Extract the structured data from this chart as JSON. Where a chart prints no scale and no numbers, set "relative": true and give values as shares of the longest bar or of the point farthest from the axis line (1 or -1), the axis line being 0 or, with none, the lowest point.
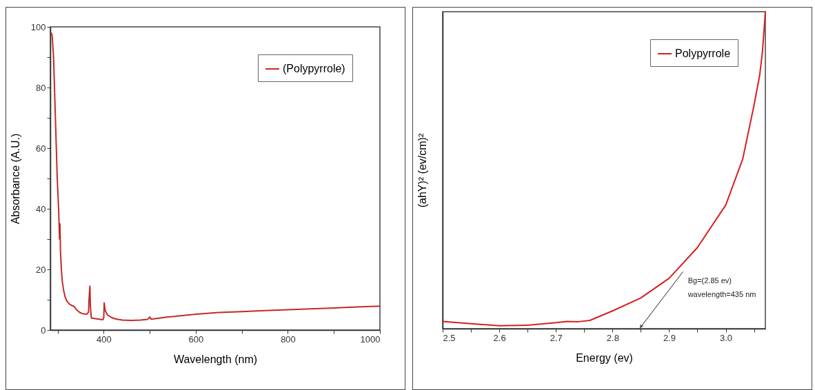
{
  "chart_data": [
    {
      "type": "line",
      "xlabel": "Wavelength (nm)",
      "ylabel": "Absorbance (A.U.)",
      "xlim": [
        284,
        1000
      ],
      "ylim": [
        0,
        100
      ],
      "xticks": [
        {
          "value": 300,
          "label": null
        },
        400,
        {
          "value": 500,
          "label": null
        },
        600,
        {
          "value": 700,
          "label": null
        },
        800,
        {
          "value": 900,
          "label": null
        },
        1000
      ],
      "yticks": [
        0,
        {
          "value": 10,
          "label": null
        },
        20,
        {
          "value": 30,
          "label": null
        },
        40,
        {
          "value": 50,
          "label": null
        },
        60,
        {
          "value": 70,
          "label": null
        },
        80,
        {
          "value": 90,
          "label": null
        },
        100
      ],
      "grid": false,
      "legend": "top right",
      "line_style": "solid",
      "series": [
        {
          "name": "(Polypyrrole)",
          "color": "#c62828",
          "x": [
            286,
            288,
            291,
            295,
            299,
            302,
            304,
            305,
            306,
            308,
            310,
            313,
            316,
            320,
            326,
            332,
            336,
            340,
            348,
            356,
            364,
            367,
            368,
            370,
            371,
            373,
            380,
            390,
            398,
            400,
            401,
            403,
            408,
            416,
            425,
            440,
            460,
            480,
            495,
            500,
            503,
            520,
            540,
            560,
            600,
            650,
            700,
            750,
            800,
            850,
            900,
            950,
            1000
          ],
          "values": [
            98,
            97,
            90,
            70,
            50,
            40,
            30,
            35,
            26,
            20,
            16,
            13,
            11,
            9.5,
            8.5,
            8,
            7.8,
            6.8,
            5.8,
            5.3,
            5.3,
            6,
            10,
            14.5,
            8,
            4,
            3.8,
            3.6,
            3.4,
            4,
            9,
            6.5,
            5,
            4.2,
            3.7,
            3.3,
            3.2,
            3.3,
            3.5,
            4.3,
            3.6,
            3.9,
            4.3,
            4.6,
            5.2,
            5.8,
            6.1,
            6.4,
            6.7,
            7,
            7.3,
            7.6,
            7.9
          ]
        }
      ]
    },
    {
      "type": "line",
      "xlabel": "Energy (ev)",
      "ylabel": "(ahY)² (ev/cm)²",
      "xlim": [
        2.5,
        3.07
      ],
      "relative": true,
      "xticks": [
        2.5,
        {
          "value": 2.55,
          "label": null
        },
        2.6,
        {
          "value": 2.65,
          "label": null
        },
        2.7,
        {
          "value": 2.75,
          "label": null
        },
        2.8,
        {
          "value": 2.85,
          "label": null
        },
        2.9,
        {
          "value": 2.95,
          "label": null
        },
        {
          "value": 3,
          "label": "3.0"
        },
        {
          "value": 3.05,
          "label": null
        }
      ],
      "grid": false,
      "legend": "top right",
      "line_style": "solid",
      "annotations": [
        "Bg=(2.85 ev)",
        "wavelength=435 nm"
      ],
      "series": [
        {
          "name": "Polypyrrole",
          "color": "#d81e1e",
          "x": [
            2.5,
            2.55,
            2.6,
            2.65,
            2.7,
            2.72,
            2.74,
            2.76,
            2.8,
            2.85,
            2.9,
            2.95,
            3.0,
            3.03,
            3.05,
            3.06,
            3.065,
            3.07
          ],
          "values": [
            0.023,
            0.016,
            0.009,
            0.011,
            0.019,
            0.023,
            0.022,
            0.026,
            0.056,
            0.097,
            0.159,
            0.256,
            0.39,
            0.535,
            0.705,
            0.8,
            0.876,
            1
          ]
        }
      ]
    }
  ]
}
